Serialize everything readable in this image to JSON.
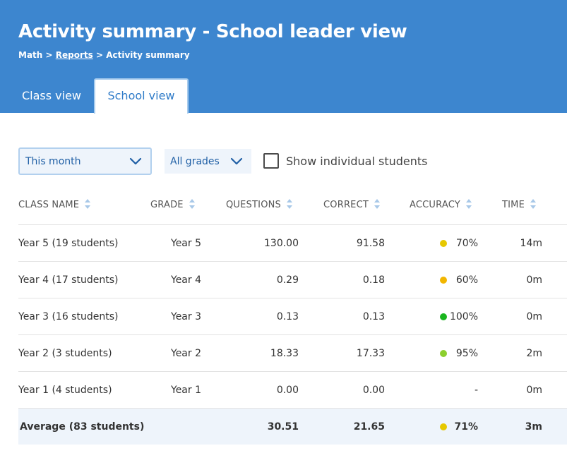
{
  "header": {
    "title": "Activity summary - School leader view",
    "breadcrumb": {
      "part1": "Math",
      "sep1": " > ",
      "part2": "Reports",
      "sep2": " > ",
      "part3": "Activity summary"
    }
  },
  "tabs": [
    {
      "label": "Class view",
      "active": false
    },
    {
      "label": "School view",
      "active": true
    }
  ],
  "filters": {
    "period": "This month",
    "grades": "All grades",
    "show_individual_label": "Show individual students",
    "show_individual_checked": false
  },
  "table": {
    "columns": [
      "CLASS NAME",
      "GRADE",
      "QUESTIONS",
      "CORRECT",
      "ACCURACY",
      "TIME"
    ],
    "rows": [
      {
        "name": "Year 5 (19 students)",
        "grade": "Year 5",
        "questions": "130.00",
        "correct": "91.58",
        "accuracy": "70%",
        "accuracy_color": "#e6c800",
        "time": "14m"
      },
      {
        "name": "Year 4 (17 students)",
        "grade": "Year 4",
        "questions": "0.29",
        "correct": "0.18",
        "accuracy": "60%",
        "accuracy_color": "#f2b600",
        "time": "0m"
      },
      {
        "name": "Year 3 (16 students)",
        "grade": "Year 3",
        "questions": "0.13",
        "correct": "0.13",
        "accuracy": "100%",
        "accuracy_color": "#19b51e",
        "time": "0m"
      },
      {
        "name": "Year 2 (3 students)",
        "grade": "Year 2",
        "questions": "18.33",
        "correct": "17.33",
        "accuracy": "95%",
        "accuracy_color": "#8ccf2e",
        "time": "2m"
      },
      {
        "name": "Year 1 (4 students)",
        "grade": "Year 1",
        "questions": "0.00",
        "correct": "0.00",
        "accuracy": "-",
        "accuracy_color": "",
        "time": "0m"
      }
    ],
    "average": {
      "name": "Average (83 students)",
      "grade": "",
      "questions": "30.51",
      "correct": "21.65",
      "accuracy": "71%",
      "accuracy_color": "#e6c800",
      "time": "3m"
    }
  },
  "colors": {
    "header_bg": "#3d86cf",
    "link_text": "#1f5fa5",
    "select_bg": "#eef4fb",
    "average_row_bg": "#eef4fb"
  }
}
